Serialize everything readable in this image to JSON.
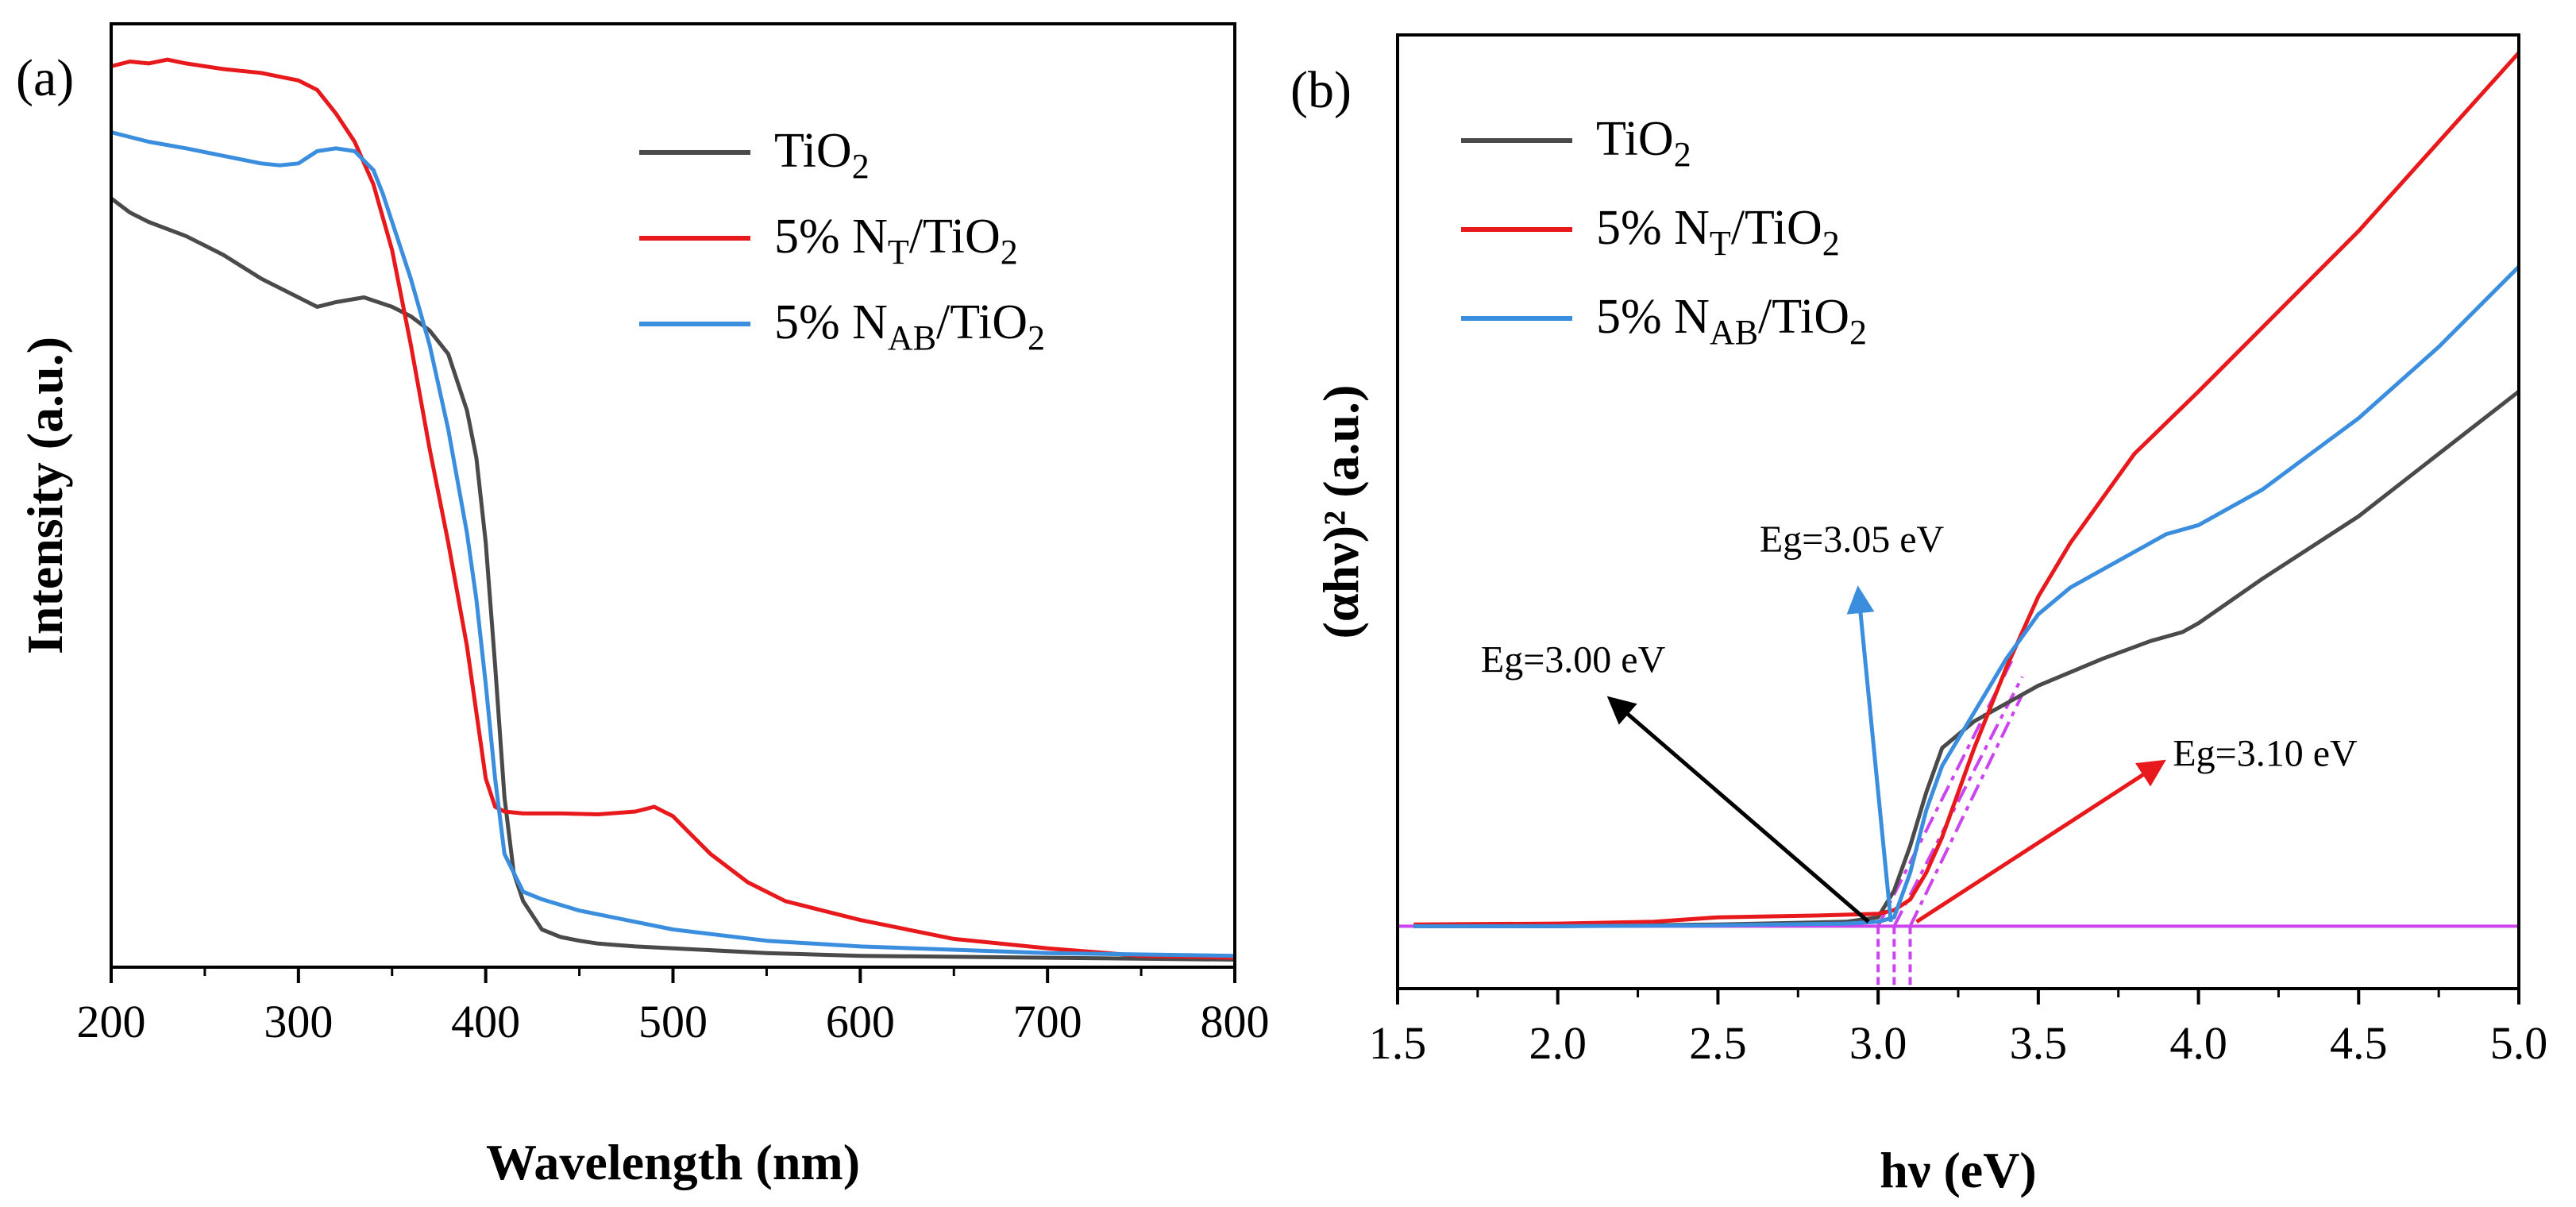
{
  "chart_data": [
    {
      "panel_label": "(a)",
      "type": "line",
      "xlabel": "Wavelength (nm)",
      "ylabel": "Intensity (a.u.)",
      "xlim": [
        200,
        800
      ],
      "ylim": [
        0,
        1.0
      ],
      "y_ticks_shown": false,
      "xticks": [
        "200",
        "300",
        "400",
        "500",
        "600",
        "700",
        "800"
      ],
      "legend_position": "top-right",
      "legend": [
        {
          "label": "TiO",
          "sub": "2",
          "color": "#4a4a4a"
        },
        {
          "label": "5% N",
          "sub": "T",
          "label2": "/TiO",
          "sub2": "2",
          "color": "#e8191c"
        },
        {
          "label": "5% N",
          "sub": "AB",
          "label2": "/TiO",
          "sub2": "2",
          "color": "#3b8ede"
        }
      ],
      "series": [
        {
          "name": "TiO2",
          "color": "#4a4a4a",
          "x": [
            200,
            210,
            220,
            240,
            260,
            280,
            300,
            310,
            320,
            335,
            350,
            360,
            370,
            380,
            390,
            395,
            400,
            405,
            410,
            415,
            420,
            430,
            440,
            450,
            460,
            480,
            500,
            550,
            600,
            700,
            800
          ],
          "y": [
            0.815,
            0.8,
            0.79,
            0.775,
            0.755,
            0.73,
            0.71,
            0.7,
            0.705,
            0.71,
            0.7,
            0.69,
            0.675,
            0.65,
            0.59,
            0.54,
            0.45,
            0.32,
            0.18,
            0.1,
            0.07,
            0.04,
            0.032,
            0.028,
            0.025,
            0.022,
            0.02,
            0.015,
            0.012,
            0.01,
            0.008
          ]
        },
        {
          "name": "5% NT/TiO2",
          "color": "#e8191c",
          "x": [
            200,
            210,
            220,
            230,
            240,
            260,
            280,
            300,
            310,
            320,
            330,
            340,
            350,
            360,
            370,
            380,
            390,
            395,
            400,
            405,
            410,
            420,
            440,
            460,
            480,
            490,
            500,
            510,
            520,
            540,
            560,
            600,
            650,
            700,
            750,
            800
          ],
          "y": [
            0.955,
            0.96,
            0.958,
            0.962,
            0.958,
            0.952,
            0.948,
            0.94,
            0.93,
            0.905,
            0.875,
            0.83,
            0.76,
            0.66,
            0.55,
            0.45,
            0.34,
            0.27,
            0.2,
            0.17,
            0.165,
            0.163,
            0.163,
            0.162,
            0.165,
            0.17,
            0.16,
            0.14,
            0.12,
            0.09,
            0.07,
            0.05,
            0.03,
            0.02,
            0.012,
            0.01
          ]
        },
        {
          "name": "5% NAB/TiO2",
          "color": "#3b8ede",
          "x": [
            200,
            220,
            240,
            260,
            280,
            290,
            300,
            310,
            320,
            330,
            340,
            345,
            350,
            360,
            370,
            380,
            390,
            395,
            400,
            405,
            410,
            420,
            430,
            450,
            500,
            550,
            600,
            700,
            800
          ],
          "y": [
            0.885,
            0.875,
            0.868,
            0.86,
            0.852,
            0.85,
            0.852,
            0.865,
            0.868,
            0.865,
            0.845,
            0.82,
            0.79,
            0.73,
            0.66,
            0.57,
            0.46,
            0.39,
            0.3,
            0.2,
            0.12,
            0.08,
            0.072,
            0.06,
            0.04,
            0.028,
            0.022,
            0.015,
            0.012
          ]
        }
      ]
    },
    {
      "panel_label": "(b)",
      "type": "line",
      "xlabel": "hν (eV)",
      "ylabel": "(αhν)² (a.u.)",
      "xlim": [
        1.5,
        5.0
      ],
      "ylim": [
        -0.07,
        1.0
      ],
      "y_ticks_shown": false,
      "xticks": [
        "1.5",
        "2.0",
        "2.5",
        "3.0",
        "3.5",
        "4.0",
        "4.5",
        "5.0"
      ],
      "legend_position": "top-left",
      "legend": [
        {
          "label": "TiO",
          "sub": "2",
          "color": "#4a4a4a"
        },
        {
          "label": "5% N",
          "sub": "T",
          "label2": "/TiO",
          "sub2": "2",
          "color": "#e8191c"
        },
        {
          "label": "5% N",
          "sub": "AB",
          "label2": "/TiO",
          "sub2": "2",
          "color": "#3b8ede"
        }
      ],
      "baseline": {
        "y": 0,
        "color": "#cc44ee"
      },
      "series": [
        {
          "name": "TiO2",
          "color": "#4a4a4a",
          "x": [
            1.55,
            2.0,
            2.5,
            2.9,
            3.0,
            3.05,
            3.1,
            3.15,
            3.2,
            3.3,
            3.5,
            3.7,
            3.85,
            3.95,
            4.0,
            4.2,
            4.5,
            4.75,
            5.0
          ],
          "y": [
            0.0,
            0.0,
            0.002,
            0.005,
            0.01,
            0.04,
            0.09,
            0.15,
            0.2,
            0.23,
            0.27,
            0.3,
            0.32,
            0.33,
            0.34,
            0.39,
            0.46,
            0.53,
            0.6
          ]
        },
        {
          "name": "5% NT/TiO2",
          "color": "#e8191c",
          "x": [
            1.55,
            2.0,
            2.3,
            2.5,
            2.8,
            3.0,
            3.05,
            3.1,
            3.15,
            3.2,
            3.3,
            3.4,
            3.5,
            3.6,
            3.7,
            3.8,
            4.0,
            4.25,
            4.5,
            4.75,
            5.0
          ],
          "y": [
            0.002,
            0.003,
            0.005,
            0.01,
            0.012,
            0.014,
            0.018,
            0.03,
            0.06,
            0.1,
            0.2,
            0.29,
            0.37,
            0.43,
            0.48,
            0.53,
            0.6,
            0.69,
            0.78,
            0.88,
            0.98
          ]
        },
        {
          "name": "5% NAB/TiO2",
          "color": "#3b8ede",
          "x": [
            1.55,
            2.0,
            2.5,
            2.9,
            3.0,
            3.05,
            3.1,
            3.15,
            3.2,
            3.3,
            3.4,
            3.5,
            3.6,
            3.75,
            3.9,
            4.0,
            4.2,
            4.5,
            4.75,
            5.0
          ],
          "y": [
            0.0,
            0.0,
            0.001,
            0.003,
            0.005,
            0.01,
            0.06,
            0.13,
            0.18,
            0.24,
            0.3,
            0.35,
            0.38,
            0.41,
            0.44,
            0.45,
            0.49,
            0.57,
            0.65,
            0.74
          ]
        }
      ],
      "tangents": [
        {
          "color": "#cc44ee",
          "x": [
            3.0,
            3.42
          ],
          "y": [
            0.0,
            0.3
          ]
        },
        {
          "color": "#cc44ee",
          "x": [
            3.05,
            3.45
          ],
          "y": [
            0.0,
            0.28
          ]
        },
        {
          "color": "#cc44ee",
          "x": [
            3.1,
            3.45
          ],
          "y": [
            0.0,
            0.26
          ]
        }
      ],
      "drop_lines": {
        "color": "#cc44ee",
        "x": [
          3.0,
          3.05,
          3.1
        ]
      },
      "annotations": [
        {
          "text": "Eg=3.00 eV",
          "color": "#000000",
          "x_from": 2.97,
          "y_from": 0.005,
          "x_to": 2.18,
          "y_to": 0.25,
          "label_x": 1.76,
          "label_y": 0.285
        },
        {
          "text": "Eg=3.05 eV",
          "color": "#3b8ede",
          "x_from": 3.04,
          "y_from": 0.005,
          "x_to": 2.94,
          "y_to": 0.37,
          "label_x": 2.63,
          "label_y": 0.42
        },
        {
          "text": "Eg=3.10 eV",
          "color": "#e8191c",
          "x_from": 3.12,
          "y_from": 0.005,
          "x_to": 3.87,
          "y_to": 0.18,
          "label_x": 3.92,
          "label_y": 0.18
        }
      ]
    }
  ]
}
